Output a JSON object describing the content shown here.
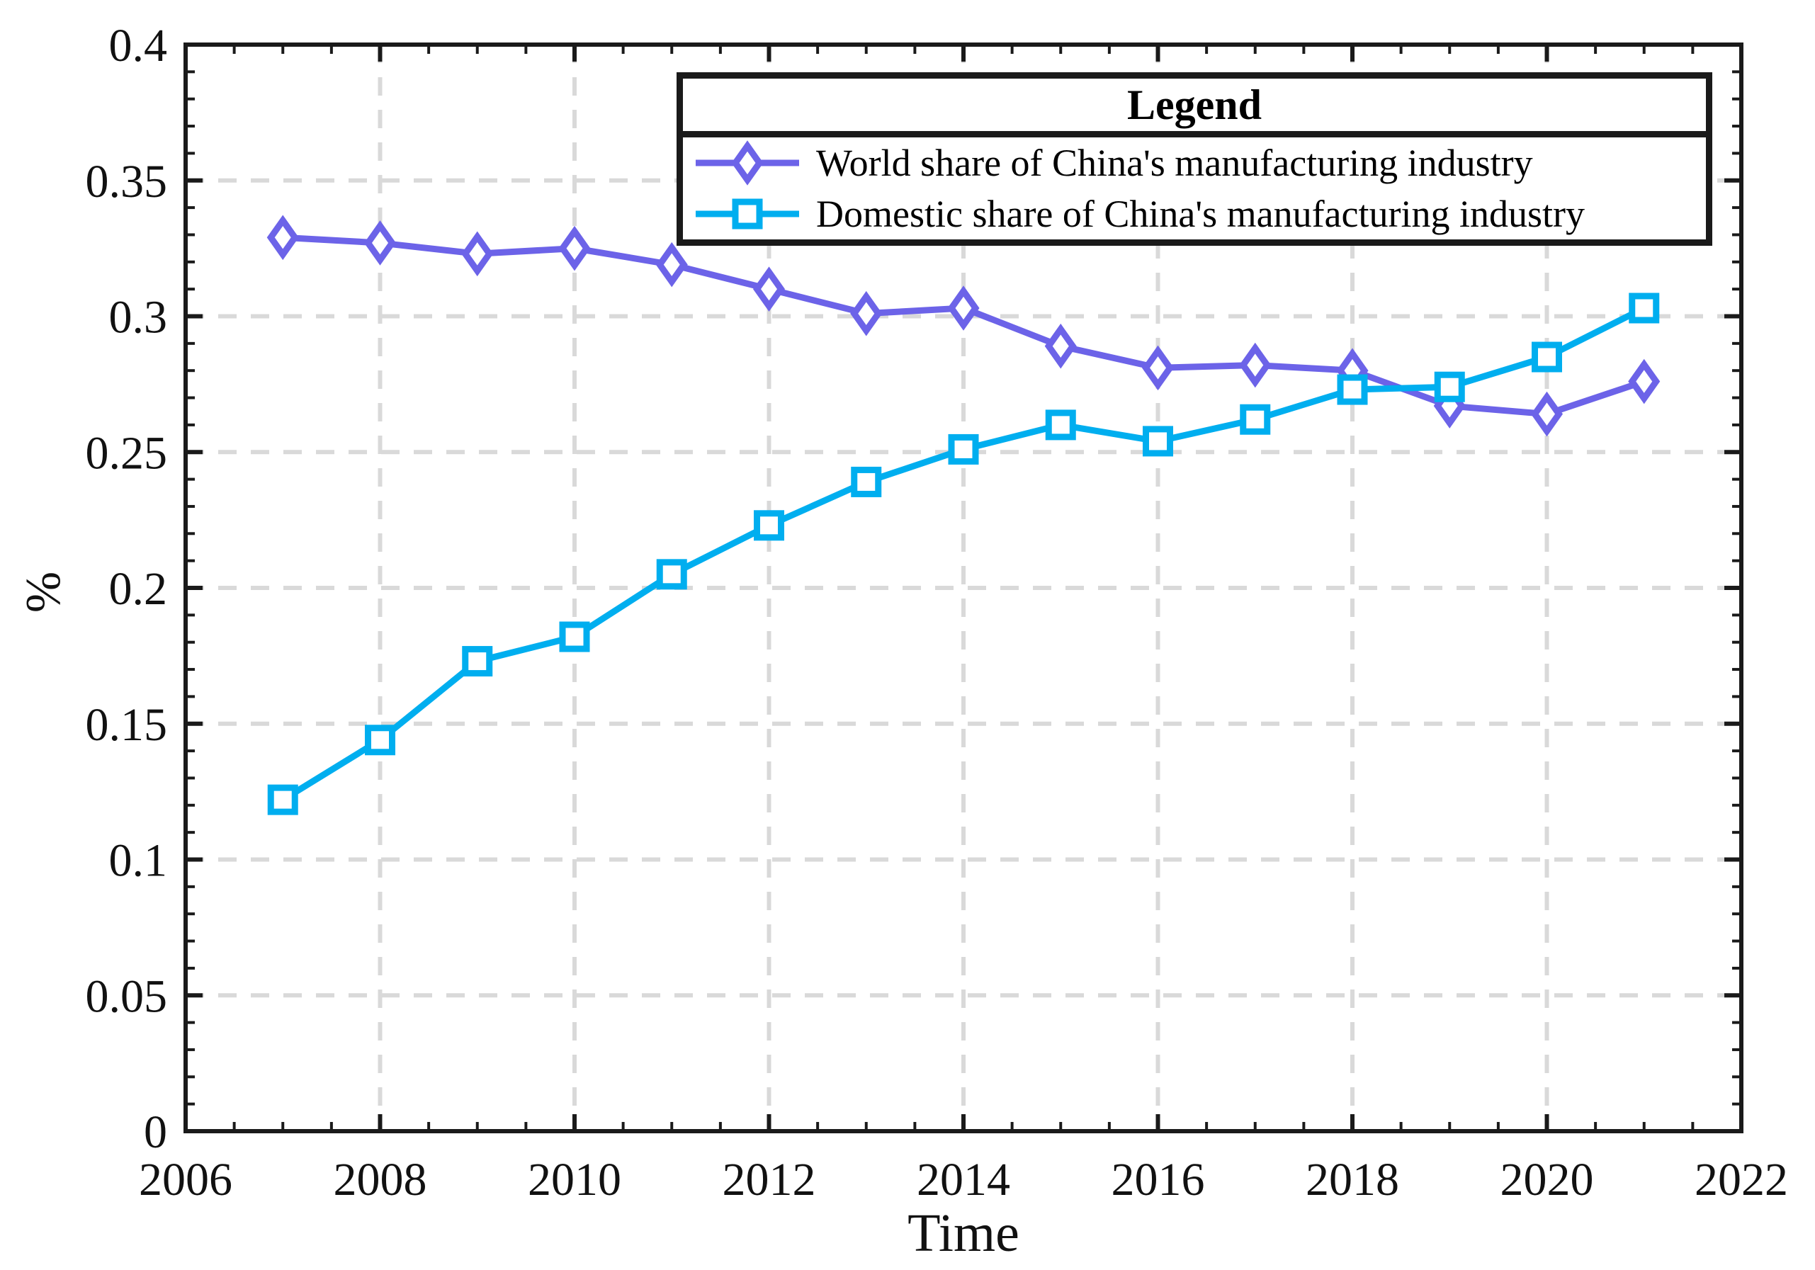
{
  "figure": {
    "background": "#ffffff"
  },
  "axes": {
    "xlabel": "Time",
    "ylabel": "%"
  },
  "legend": {
    "title": "Legend",
    "entries": [
      {
        "label": "World share of China's manufacturing industry"
      },
      {
        "label": "Domestic share of China's manufacturing industry"
      }
    ]
  },
  "colors": {
    "world_series": "#6c63e8",
    "domestic_series": "#00aeef",
    "axis": "#1a1a1a",
    "grid": "#d9d9d9",
    "text": "#111111"
  },
  "chart_data": {
    "type": "line",
    "title": "",
    "xlabel": "Time",
    "ylabel": "%",
    "xlim": [
      2006,
      2022
    ],
    "ylim": [
      0,
      0.4
    ],
    "xticks": [
      2006,
      2008,
      2010,
      2012,
      2014,
      2016,
      2018,
      2020,
      2022
    ],
    "xtick_labels": [
      "2006",
      "2008",
      "2010",
      "2012",
      "2014",
      "2016",
      "2018",
      "2020",
      "2022"
    ],
    "yticks": [
      0,
      0.05,
      0.1,
      0.15,
      0.2,
      0.25,
      0.3,
      0.35,
      0.4
    ],
    "ytick_labels": [
      "0",
      "0.05",
      "0.1",
      "0.15",
      "0.2",
      "0.25",
      "0.3",
      "0.35",
      "0.4"
    ],
    "minor_tick_step_x": 0.5,
    "minor_tick_step_y": 0.01,
    "grid": {
      "show": true,
      "style": "dashed",
      "color": "#d9d9d9"
    },
    "legend_position": "top-right-inside",
    "x": [
      2007,
      2008,
      2009,
      2010,
      2011,
      2012,
      2013,
      2014,
      2015,
      2016,
      2017,
      2018,
      2019,
      2020,
      2021
    ],
    "series": [
      {
        "name": "World share of China's manufacturing industry",
        "color": "#6c63e8",
        "marker": "diamond",
        "values": [
          0.329,
          0.327,
          0.323,
          0.325,
          0.319,
          0.31,
          0.301,
          0.303,
          0.289,
          0.281,
          0.282,
          0.28,
          0.267,
          0.264,
          0.276
        ]
      },
      {
        "name": "Domestic share of China's manufacturing industry",
        "color": "#00aeef",
        "marker": "square",
        "values": [
          0.122,
          0.144,
          0.173,
          0.182,
          0.205,
          0.223,
          0.239,
          0.251,
          0.26,
          0.254,
          0.262,
          0.273,
          0.274,
          0.285,
          0.303
        ]
      }
    ]
  }
}
